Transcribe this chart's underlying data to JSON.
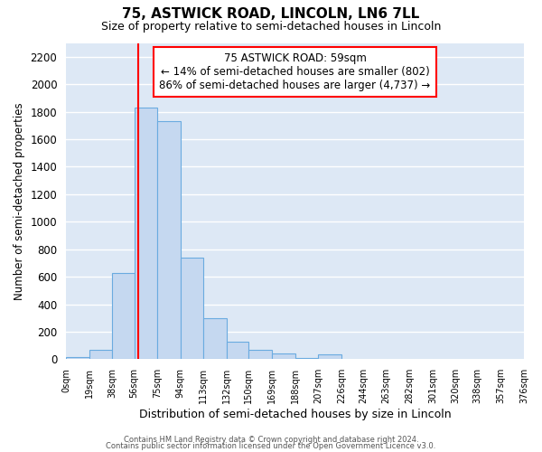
{
  "title": "75, ASTWICK ROAD, LINCOLN, LN6 7LL",
  "subtitle": "Size of property relative to semi-detached houses in Lincoln",
  "xlabel": "Distribution of semi-detached houses by size in Lincoln",
  "ylabel": "Number of semi-detached properties",
  "bar_color": "#c5d8f0",
  "bar_edge_color": "#6aabe0",
  "background_color": "#dde8f5",
  "grid_color": "white",
  "bin_edges": [
    0,
    19,
    38,
    56,
    75,
    94,
    113,
    132,
    150,
    169,
    188,
    207,
    226,
    244,
    263,
    282,
    301,
    320,
    338,
    357,
    376
  ],
  "bin_labels": [
    "0sqm",
    "19sqm",
    "38sqm",
    "56sqm",
    "75sqm",
    "94sqm",
    "113sqm",
    "132sqm",
    "150sqm",
    "169sqm",
    "188sqm",
    "207sqm",
    "226sqm",
    "244sqm",
    "263sqm",
    "282sqm",
    "301sqm",
    "320sqm",
    "338sqm",
    "357sqm",
    "376sqm"
  ],
  "bar_heights": [
    15,
    65,
    625,
    1830,
    1730,
    740,
    300,
    130,
    70,
    40,
    10,
    35,
    0,
    0,
    0,
    0,
    0,
    0,
    0,
    0
  ],
  "red_line_x": 59,
  "annotation_text_line1": "75 ASTWICK ROAD: 59sqm",
  "annotation_text_line2": "← 14% of semi-detached houses are smaller (802)",
  "annotation_text_line3": "86% of semi-detached houses are larger (4,737) →",
  "ylim": [
    0,
    2300
  ],
  "yticks": [
    0,
    200,
    400,
    600,
    800,
    1000,
    1200,
    1400,
    1600,
    1800,
    2000,
    2200
  ],
  "footer_line1": "Contains HM Land Registry data © Crown copyright and database right 2024.",
  "footer_line2": "Contains public sector information licensed under the Open Government Licence v3.0."
}
